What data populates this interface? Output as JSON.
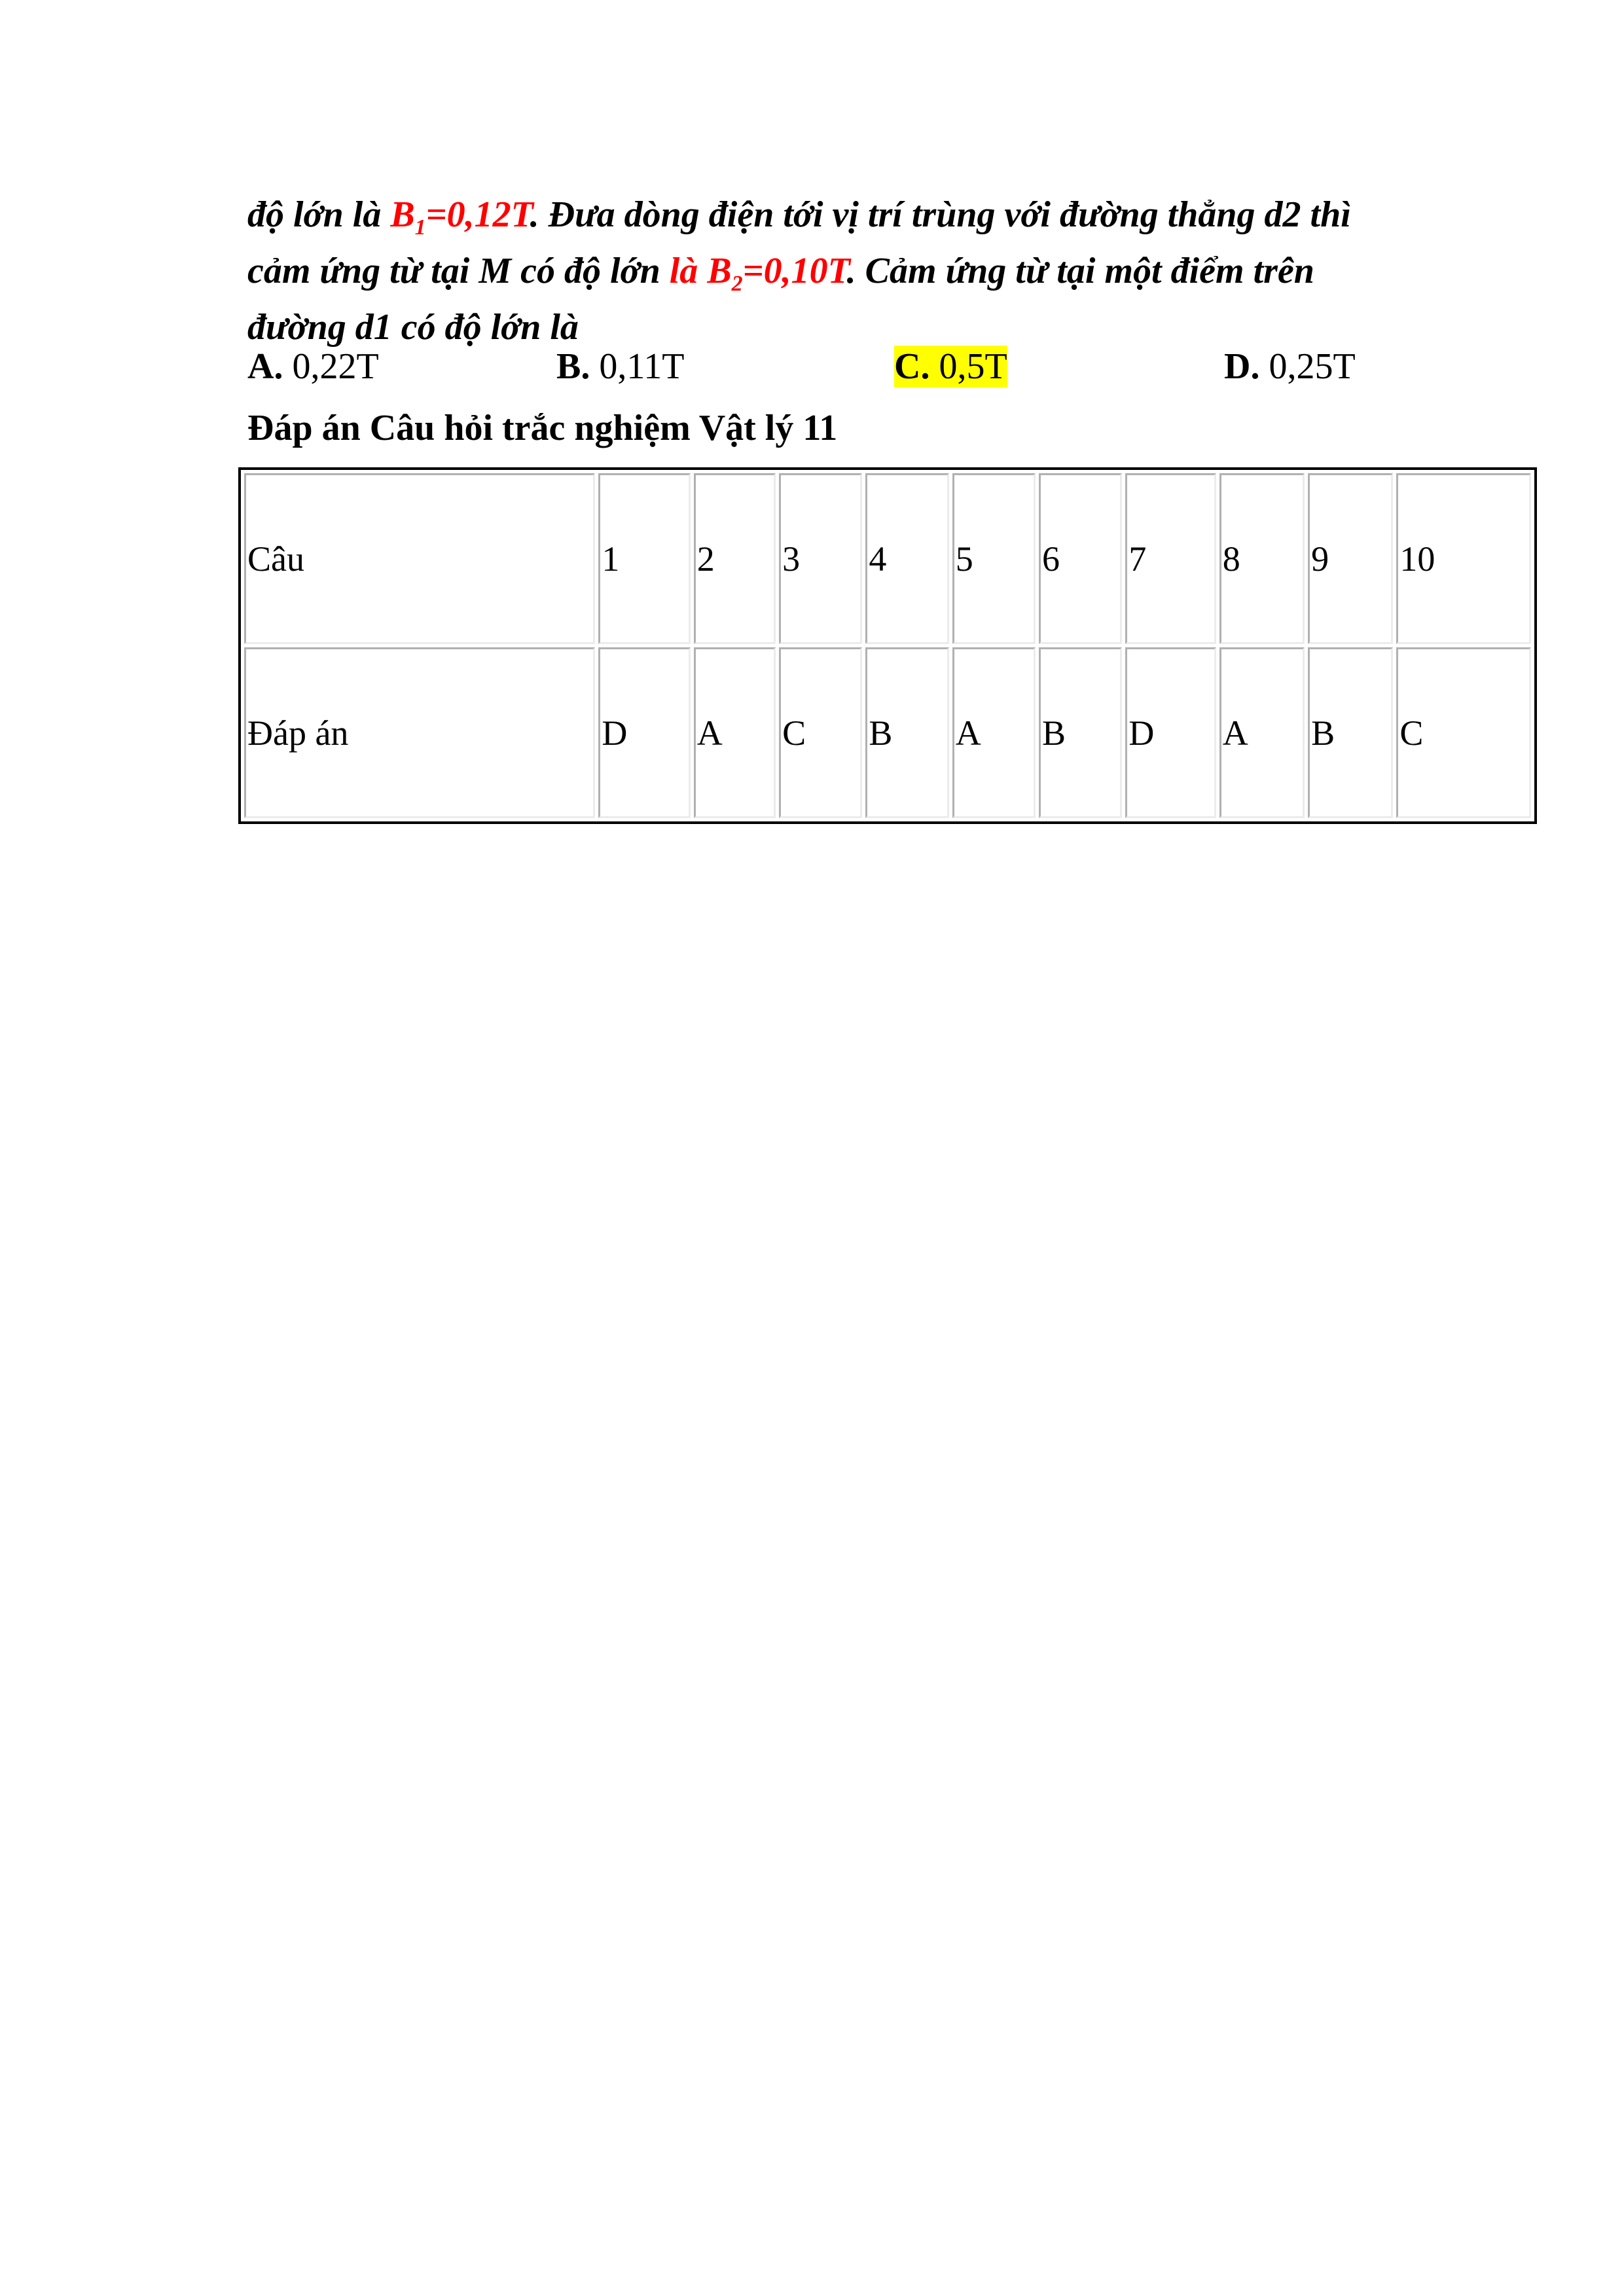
{
  "question": {
    "t1": "độ lớn là ",
    "b1": "B",
    "b1_sub": "1",
    "b1_val": "=0,12T",
    "t2": ". Đưa dòng điện tới vị trí trùng với đường thẳng d2 thì cảm ứng từ tại M có độ lớn ",
    "la": "là ",
    "b2": "B",
    "b2_sub": "2",
    "b2_val": "=0,10T",
    "t3": ". Cảm ứng từ tại một điểm trên đường d1 có độ lớn là"
  },
  "options": [
    {
      "letter": "A.",
      "value": " 0,22T",
      "highlighted": false
    },
    {
      "letter": "B.",
      "value": " 0,11T",
      "highlighted": false
    },
    {
      "letter": "C.",
      "value": " 0,5T",
      "highlighted": true
    },
    {
      "letter": "D.",
      "value": " 0,25T",
      "highlighted": false
    }
  ],
  "highlight_color": "#ffff00",
  "accent_color": "#ff0000",
  "answer_heading": "Đáp án Câu hỏi trắc nghiệm Vật lý 11",
  "table": {
    "row_labels": [
      "Câu",
      "Đáp án"
    ],
    "questions": [
      "1",
      "2",
      "3",
      "4",
      "5",
      "6",
      "7",
      "8",
      "9",
      "10"
    ],
    "answers": [
      "D",
      "A",
      "C",
      "B",
      "A",
      "B",
      "D",
      "A",
      "B",
      "C"
    ]
  }
}
